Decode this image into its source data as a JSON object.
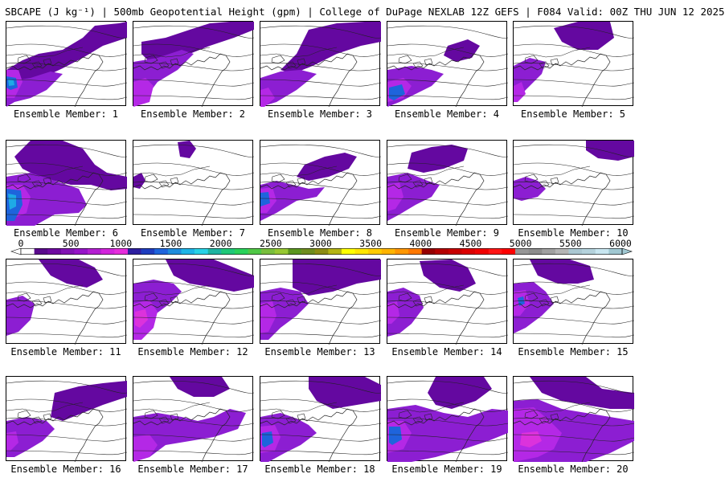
{
  "header": {
    "title": "SBCAPE (J kg⁻¹) | 500mb Geopotential Height (gpm) | College of DuPage NEXLAB 12Z GEFS | F084 Valid: 00Z THU JUN 12 2025"
  },
  "panels": [
    {
      "label": "Ensemble Member: 1"
    },
    {
      "label": "Ensemble Member: 2"
    },
    {
      "label": "Ensemble Member: 3"
    },
    {
      "label": "Ensemble Member: 4"
    },
    {
      "label": "Ensemble Member: 5"
    },
    {
      "label": "Ensemble Member: 6"
    },
    {
      "label": "Ensemble Member: 7"
    },
    {
      "label": "Ensemble Member: 8"
    },
    {
      "label": "Ensemble Member: 9"
    },
    {
      "label": "Ensemble Member: 10"
    },
    {
      "label": "Ensemble Member: 11"
    },
    {
      "label": "Ensemble Member: 12"
    },
    {
      "label": "Ensemble Member: 13"
    },
    {
      "label": "Ensemble Member: 14"
    },
    {
      "label": "Ensemble Member: 15"
    },
    {
      "label": "Ensemble Member: 16"
    },
    {
      "label": "Ensemble Member: 17"
    },
    {
      "label": "Ensemble Member: 18"
    },
    {
      "label": "Ensemble Member: 19"
    },
    {
      "label": "Ensemble Member: 20"
    }
  ],
  "colorbar": {
    "ticks": [
      "0",
      "500",
      "1000",
      "1500",
      "2000",
      "2500",
      "3000",
      "3500",
      "4000",
      "4500",
      "5000",
      "5500",
      "6000"
    ],
    "colors": [
      "#ffffff",
      "#5a0a8c",
      "#6e0aa0",
      "#8214b4",
      "#9614c8",
      "#b41ed2",
      "#d223dc",
      "#e62ddc",
      "#2d1ea0",
      "#1e3cbe",
      "#1e64dc",
      "#1e8cdc",
      "#1eb4e6",
      "#28d2e6",
      "#1eb4a0",
      "#1ec878",
      "#28d25a",
      "#50c846",
      "#78be3c",
      "#96c832",
      "#5a961e",
      "#6e8c1e",
      "#8c8c14",
      "#b4b414",
      "#ffff00",
      "#ffe600",
      "#ffcc00",
      "#ffb400",
      "#ff9600",
      "#ff7800",
      "#960000",
      "#b40000",
      "#c80000",
      "#dc0000",
      "#f00000",
      "#ff1414",
      "#ff0000",
      "#969696",
      "#8c8c8c",
      "#a0a0a0",
      "#b4b4b4",
      "#aac8d2",
      "#b4d2dc",
      "#c8e6f0",
      "#a0c8d2"
    ],
    "levels": 45
  },
  "colors": {
    "cape_light": "#8c1ed2",
    "cape_medium": "#7814b4",
    "cape_dark": "#6408a0",
    "cape_high": "#b428e6",
    "cape_magenta": "#dc32dc",
    "cape_blue": "#1e64dc",
    "cape_cyan": "#1eaae6",
    "contour": "#000000"
  }
}
